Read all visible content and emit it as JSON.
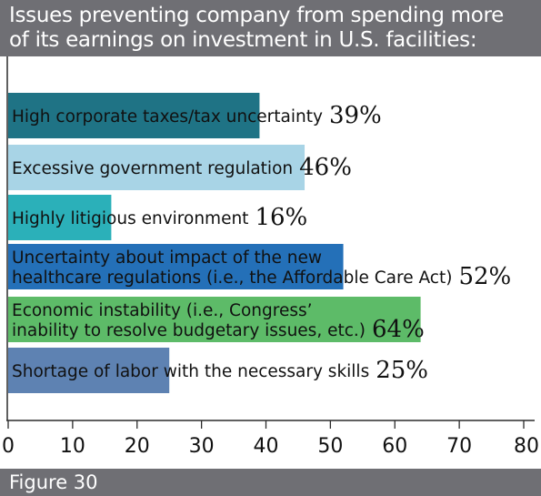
{
  "title_lines": [
    "Issues preventing company from spending more",
    "of its earnings on investment in U.S. facilities:"
  ],
  "figure_label": "Figure 30",
  "colors": {
    "band": "#6f6f74",
    "axis": "#2b2b2b"
  },
  "chart_data": {
    "type": "bar",
    "orientation": "horizontal",
    "title": "Issues preventing company from spending more of its earnings on investment in U.S. facilities:",
    "xlabel": "",
    "ylabel": "",
    "xlim": [
      0,
      80
    ],
    "xticks": [
      0,
      10,
      20,
      30,
      40,
      50,
      60,
      70,
      80
    ],
    "grid": false,
    "categories": [
      [
        "High corporate taxes/tax uncertainty"
      ],
      [
        "Excessive government regulation"
      ],
      [
        "Highly litigious environment"
      ],
      [
        "Uncertainty about impact of the new",
        "healthcare regulations (i.e., the Affordable Care Act)"
      ],
      [
        "Economic instability (i.e., Congress’",
        "inability to resolve budgetary issues, etc.)"
      ],
      [
        "Shortage of labor with the necessary skills"
      ]
    ],
    "values": [
      39,
      46,
      16,
      52,
      64,
      25
    ],
    "value_labels": [
      "39%",
      "46%",
      "16%",
      "52%",
      "64%",
      "25%"
    ],
    "bar_colors": [
      "#1f7385",
      "#a8d4e6",
      "#2bb0b9",
      "#2470b8",
      "#5dbb68",
      "#5e82b2"
    ]
  }
}
